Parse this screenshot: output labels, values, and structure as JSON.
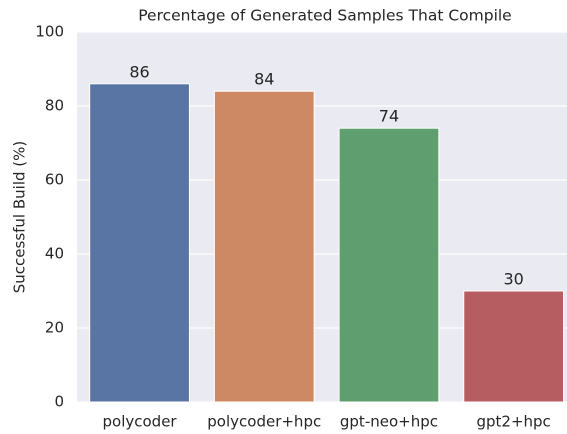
{
  "chart_data": {
    "type": "bar",
    "title": "Percentage of Generated Samples That Compile",
    "ylabel": "Successful Build (%)",
    "categories": [
      "polycoder",
      "polycoder+hpc",
      "gpt-neo+hpc",
      "gpt2+hpc"
    ],
    "values": [
      86,
      84,
      74,
      30
    ],
    "colors": [
      "#5975a4",
      "#cc8963",
      "#5f9e6e",
      "#b55d60"
    ],
    "ylim": [
      0,
      100
    ],
    "yticks": [
      0,
      20,
      40,
      60,
      80,
      100
    ],
    "grid": true
  }
}
